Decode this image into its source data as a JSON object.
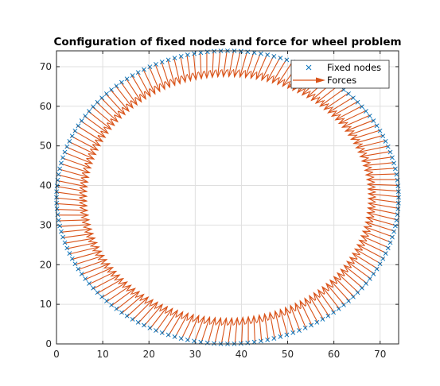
{
  "chart_data": {
    "type": "scatter",
    "title": "Configuration of fixed nodes and force for wheel problem",
    "xlabel": "",
    "ylabel": "",
    "xlim": [
      0,
      74
    ],
    "ylim": [
      0,
      74
    ],
    "xticks": [
      0,
      10,
      20,
      30,
      40,
      50,
      60,
      70
    ],
    "yticks": [
      0,
      10,
      20,
      30,
      40,
      50,
      60,
      70
    ],
    "grid": true,
    "legend_position": "top-right",
    "series": [
      {
        "name": "Fixed nodes",
        "type": "scatter",
        "marker": "x",
        "color": "#0072BD",
        "center": [
          37,
          37
        ],
        "radius": 37,
        "node_count": 160
      },
      {
        "name": "Forces",
        "type": "quiver",
        "color": "#D95319",
        "direction": "inward",
        "arrow_length": 6.5,
        "tail_offset": [
          0,
          0
        ]
      }
    ]
  }
}
